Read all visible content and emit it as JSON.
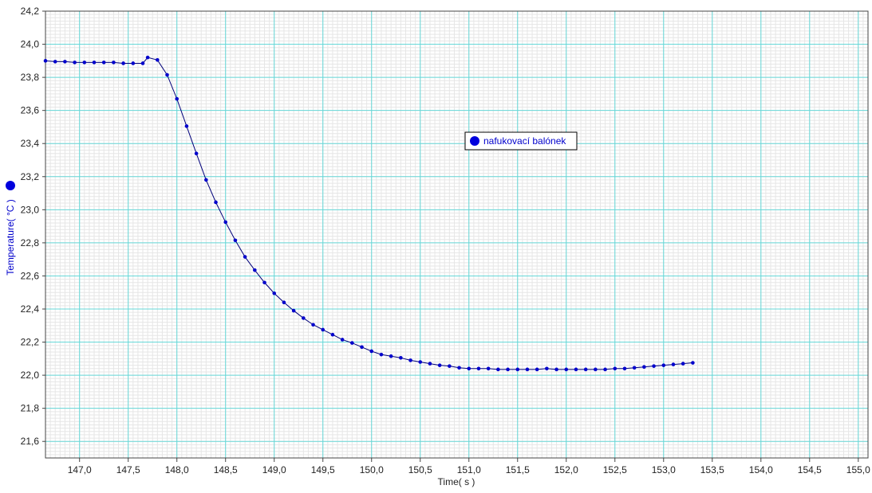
{
  "chart_data": {
    "type": "line",
    "xlabel": "Time( s )",
    "ylabel": "Temperature( °C )",
    "xlim": [
      146.65,
      155.1
    ],
    "ylim": [
      21.5,
      24.2
    ],
    "x_ticks": [
      "147,0",
      "147,5",
      "148,0",
      "148,5",
      "149,0",
      "149,5",
      "150,0",
      "150,5",
      "151,0",
      "151,5",
      "152,0",
      "152,5",
      "153,0",
      "153,5",
      "154,0",
      "154,5",
      "155,0"
    ],
    "y_ticks": [
      "21,6",
      "21,8",
      "22,0",
      "22,2",
      "22,4",
      "22,6",
      "22,8",
      "23,0",
      "23,2",
      "23,4",
      "23,6",
      "23,8",
      "24,0",
      "24,2"
    ],
    "grid": true,
    "legend_position": "center-right",
    "colors": {
      "series": "#0000cc",
      "grid_major": "#66d8d8",
      "grid_minor": "#e6e6e6"
    },
    "series": [
      {
        "name": "nafukovací balónek",
        "x": [
          146.65,
          146.75,
          146.85,
          146.95,
          147.05,
          147.15,
          147.25,
          147.35,
          147.45,
          147.55,
          147.65,
          147.7,
          147.8,
          147.9,
          148.0,
          148.1,
          148.2,
          148.3,
          148.4,
          148.5,
          148.6,
          148.7,
          148.8,
          148.9,
          149.0,
          149.1,
          149.2,
          149.3,
          149.4,
          149.5,
          149.6,
          149.7,
          149.8,
          149.9,
          150.0,
          150.1,
          150.2,
          150.3,
          150.4,
          150.5,
          150.6,
          150.7,
          150.8,
          150.9,
          151.0,
          151.1,
          151.2,
          151.3,
          151.4,
          151.5,
          151.6,
          151.7,
          151.8,
          151.9,
          152.0,
          152.1,
          152.2,
          152.3,
          152.4,
          152.5,
          152.6,
          152.7,
          152.8,
          152.9,
          153.0,
          153.1,
          153.2,
          153.3
        ],
        "values": [
          23.9,
          23.895,
          23.895,
          23.89,
          23.89,
          23.89,
          23.89,
          23.89,
          23.885,
          23.885,
          23.885,
          23.92,
          23.905,
          23.815,
          23.67,
          23.505,
          23.34,
          23.18,
          23.045,
          22.925,
          22.815,
          22.715,
          22.635,
          22.56,
          22.495,
          22.44,
          22.39,
          22.345,
          22.305,
          22.275,
          22.245,
          22.215,
          22.195,
          22.17,
          22.145,
          22.125,
          22.115,
          22.105,
          22.09,
          22.08,
          22.07,
          22.06,
          22.055,
          22.045,
          22.04,
          22.04,
          22.04,
          22.035,
          22.035,
          22.035,
          22.035,
          22.035,
          22.04,
          22.035,
          22.035,
          22.035,
          22.035,
          22.035,
          22.035,
          22.04,
          22.04,
          22.045,
          22.05,
          22.055,
          22.06,
          22.065,
          22.07,
          22.075
        ]
      }
    ]
  }
}
